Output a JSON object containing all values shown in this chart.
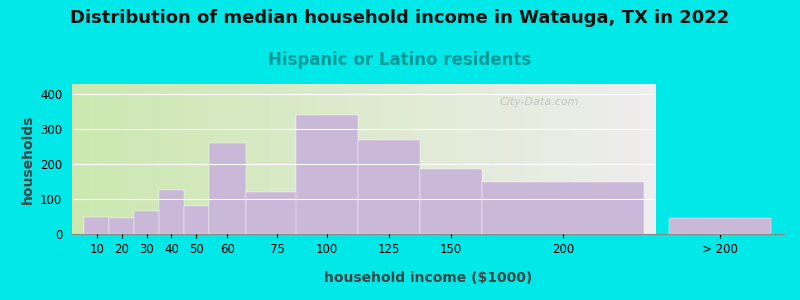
{
  "title": "Distribution of median household income in Watauga, TX in 2022",
  "subtitle": "Hispanic or Latino residents",
  "xlabel": "household income ($1000)",
  "ylabel": "households",
  "bar_labels": [
    "10",
    "20",
    "30",
    "40",
    "50",
    "60",
    "75",
    "100",
    "125",
    "150",
    "200",
    "> 200"
  ],
  "bar_values": [
    50,
    45,
    65,
    125,
    80,
    260,
    120,
    340,
    270,
    185,
    150,
    45
  ],
  "bar_color": "#c9b8d8",
  "bar_edgecolor": "#c9b8d8",
  "background_color": "#00e8e8",
  "plot_bg_color_left": "#cde8b0",
  "plot_bg_color_right": "#f0eeee",
  "title_fontsize": 13,
  "subtitle_fontsize": 12,
  "subtitle_color": "#009999",
  "axis_label_fontsize": 10,
  "yticks": [
    0,
    100,
    200,
    300,
    400
  ],
  "ylim": [
    0,
    430
  ],
  "watermark_text": "City-Data.com"
}
